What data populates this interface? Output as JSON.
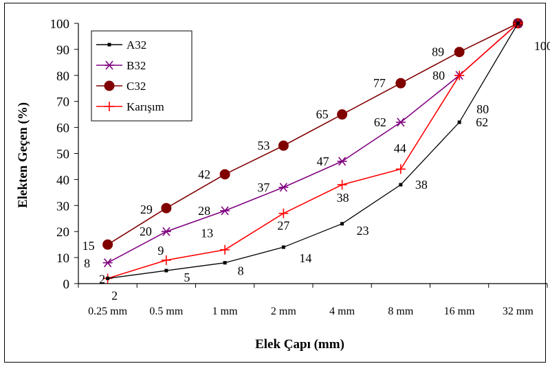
{
  "chart_data": {
    "type": "line",
    "xlabel": "Elek Çapı (mm)",
    "ylabel": "Elekten Geçen (%)",
    "ylim": [
      0,
      100
    ],
    "y_ticks": [
      "0",
      "10",
      "20",
      "30",
      "40",
      "50",
      "60",
      "70",
      "80",
      "90",
      "100"
    ],
    "categories": [
      "0.25 mm",
      "0.5 mm",
      "1 mm",
      "2 mm",
      "4 mm",
      "8 mm",
      "16 mm",
      "32 mm"
    ],
    "legend_position": "top-left",
    "series": [
      {
        "name": "A32",
        "color": "#000000",
        "marker": "square",
        "values": [
          2,
          5,
          8,
          14,
          23,
          38,
          62,
          100
        ]
      },
      {
        "name": "B32",
        "color": "#800080",
        "marker": "asterisk",
        "values": [
          8,
          20,
          28,
          37,
          47,
          62,
          80,
          100
        ]
      },
      {
        "name": "C32",
        "color": "#800000",
        "marker": "circle",
        "values": [
          15,
          29,
          42,
          53,
          65,
          77,
          89,
          100
        ]
      },
      {
        "name": "Karışım",
        "color": "#ff0000",
        "marker": "plus",
        "values": [
          2,
          9,
          13,
          27,
          38,
          44,
          80,
          100
        ]
      }
    ],
    "data_labels": [
      "2",
      "5",
      "8",
      "14",
      "23",
      "38",
      "62",
      "100",
      "15",
      "29",
      "42",
      "53",
      "65",
      "77",
      "89",
      "2",
      "9",
      "13",
      "27",
      "38",
      "44",
      "80",
      "8",
      "20",
      "28",
      "37",
      "47",
      "62",
      "80"
    ]
  }
}
